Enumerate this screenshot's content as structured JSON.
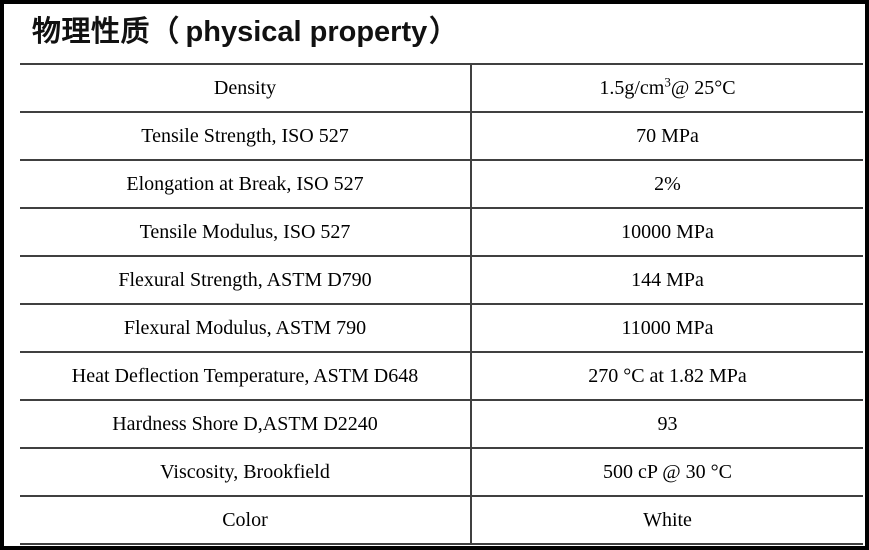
{
  "title": {
    "cn_part": "物理性质（",
    "en_part": "physical property",
    "close_part": "）"
  },
  "table": {
    "columns": [
      "property",
      "value"
    ],
    "rows": [
      {
        "property": "Density",
        "value": [
          {
            "text": "1.5g/cm"
          },
          {
            "text": "3",
            "sup": true
          },
          {
            "text": "@ 25°C"
          }
        ]
      },
      {
        "property": "Tensile Strength, ISO 527",
        "value": [
          {
            "text": "70 MPa"
          }
        ]
      },
      {
        "property": "Elongation at Break, ISO 527",
        "value": [
          {
            "text": "2%"
          }
        ]
      },
      {
        "property": "Tensile Modulus, ISO 527",
        "value": [
          {
            "text": "10000 MPa"
          }
        ]
      },
      {
        "property": "Flexural Strength, ASTM D790",
        "value": [
          {
            "text": "144 MPa"
          }
        ]
      },
      {
        "property": "Flexural Modulus, ASTM 790",
        "value": [
          {
            "text": "11000 MPa"
          }
        ]
      },
      {
        "property": "Heat Deflection Temperature, ASTM D648",
        "value": [
          {
            "text": "270 °C at 1.82 MPa"
          }
        ]
      },
      {
        "property": "Hardness Shore D,ASTM D2240",
        "value": [
          {
            "text": "93"
          }
        ]
      },
      {
        "property": "Viscosity, Brookfield",
        "value": [
          {
            "text": "500 cP @ 30 °C"
          }
        ]
      },
      {
        "property": "Color",
        "value": [
          {
            "text": "White"
          }
        ]
      }
    ]
  },
  "colors": {
    "frame": "#000000",
    "table_border": "#404040",
    "text": "#000000",
    "background": "#ffffff"
  }
}
